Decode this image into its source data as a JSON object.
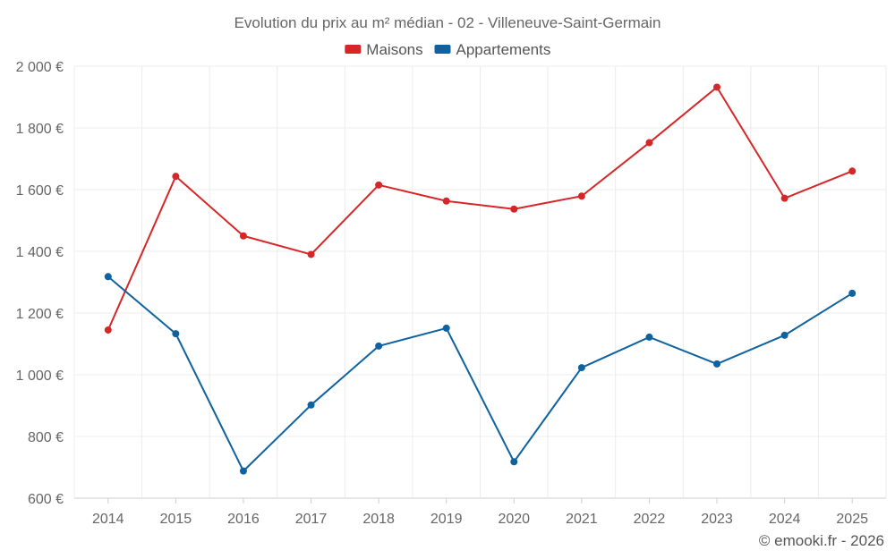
{
  "chart_data": {
    "type": "line",
    "title": "Evolution du prix au m² médian - 02 - Villeneuve-Saint-Germain",
    "categories": [
      "2014",
      "2015",
      "2016",
      "2017",
      "2018",
      "2019",
      "2020",
      "2021",
      "2022",
      "2023",
      "2024",
      "2025"
    ],
    "series": [
      {
        "name": "Maisons",
        "color": "#d62728",
        "values": [
          1145,
          1643,
          1450,
          1390,
          1615,
          1563,
          1537,
          1579,
          1752,
          1932,
          1572,
          1660
        ]
      },
      {
        "name": "Appartements",
        "color": "#0f62a0",
        "values": [
          1318,
          1133,
          688,
          902,
          1093,
          1151,
          718,
          1023,
          1122,
          1035,
          1128,
          1264
        ]
      }
    ],
    "ylim": [
      600,
      2000
    ],
    "yticks": [
      {
        "value": 600,
        "label": "600 €"
      },
      {
        "value": 800,
        "label": "800 €"
      },
      {
        "value": 1000,
        "label": "1 000 €"
      },
      {
        "value": 1200,
        "label": "1 200 €"
      },
      {
        "value": 1400,
        "label": "1 400 €"
      },
      {
        "value": 1600,
        "label": "1 600 €"
      },
      {
        "value": 1800,
        "label": "1 800 €"
      },
      {
        "value": 2000,
        "label": "2 000 €"
      }
    ],
    "xlabel": "",
    "ylabel": "",
    "grid": true,
    "legend_position": "top-center"
  },
  "credit": "© emooki.fr - 2026"
}
